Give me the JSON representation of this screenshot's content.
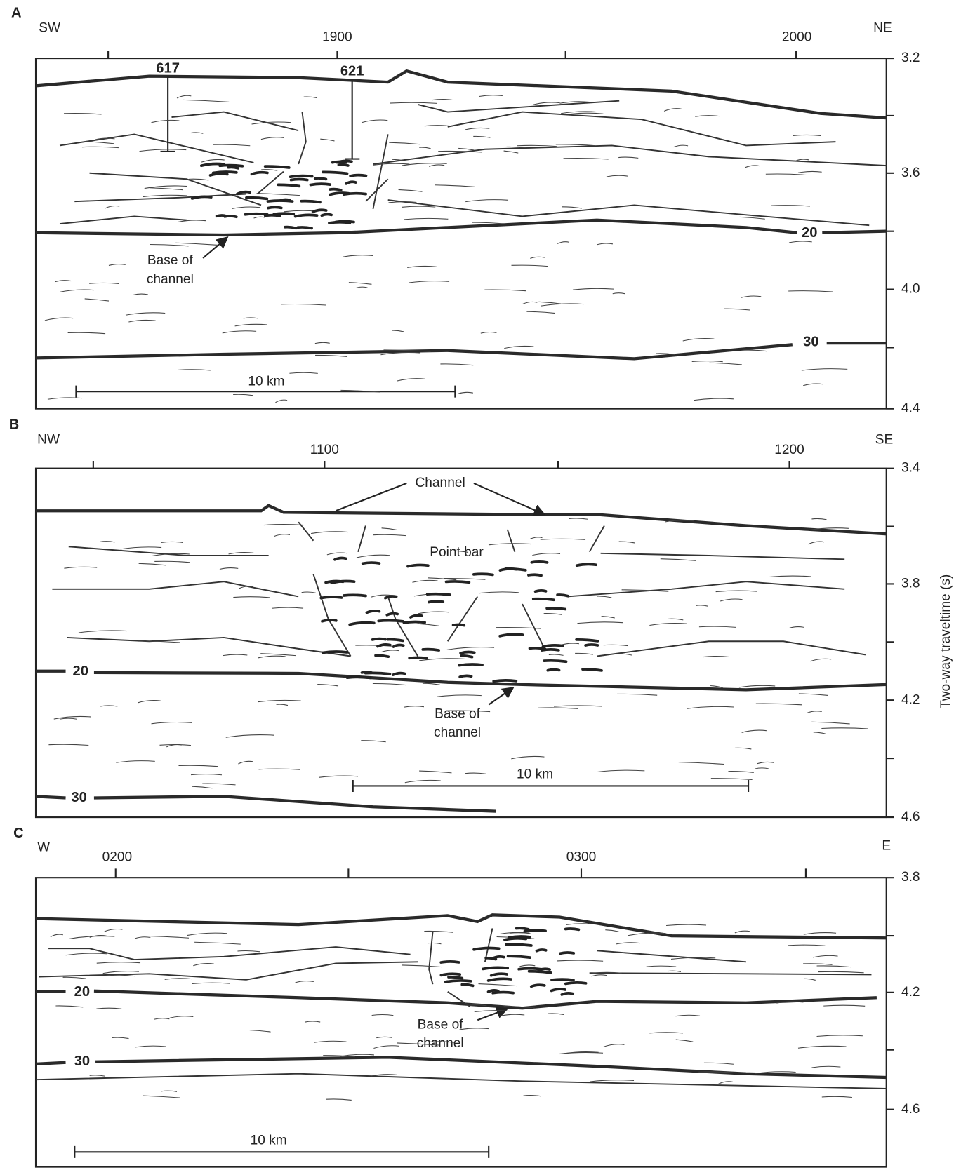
{
  "panels": [
    {
      "letter": "A",
      "left_dir": "SW",
      "right_dir": "NE",
      "top_labels": [
        "1900",
        "2000"
      ],
      "depth_labels": [
        "3.2",
        "3.6",
        "4.0",
        "4.4"
      ],
      "wells": [
        "617",
        "621"
      ],
      "horizons": [
        "20",
        "30"
      ],
      "base_label": [
        "Base of",
        "channel"
      ],
      "scale_label": "10 km"
    },
    {
      "letter": "B",
      "left_dir": "NW",
      "right_dir": "SE",
      "top_labels": [
        "1100",
        "1200"
      ],
      "depth_labels": [
        "3.4",
        "3.8",
        "4.2",
        "4.6"
      ],
      "channel_label": "Channel",
      "point_bar_label": "Point bar",
      "horizons": [
        "20",
        "30"
      ],
      "base_label": [
        "Base of",
        "channel"
      ],
      "scale_label": "10 km"
    },
    {
      "letter": "C",
      "left_dir": "W",
      "right_dir": "E",
      "top_labels": [
        "0200",
        "0300"
      ],
      "depth_labels": [
        "3.8",
        "4.2",
        "4.6"
      ],
      "horizons": [
        "20",
        "30"
      ],
      "base_label": [
        "Base of",
        "channel"
      ],
      "scale_label": "10 km"
    }
  ],
  "axis_title": "Two-way traveltime (s)"
}
